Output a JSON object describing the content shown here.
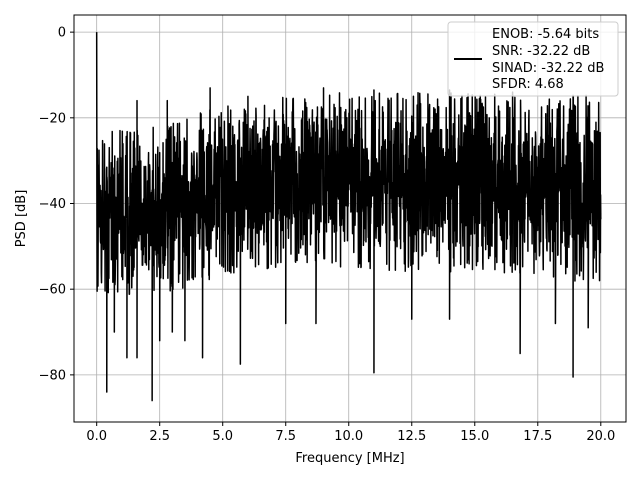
{
  "chart_data": {
    "type": "line",
    "xlabel": "Frequency [MHz]",
    "ylabel": "PSD [dB]",
    "xlim": [
      -0.9,
      21.0
    ],
    "ylim": [
      -91.0,
      4.0
    ],
    "xticks": [
      0.0,
      2.5,
      5.0,
      7.5,
      10.0,
      12.5,
      15.0,
      17.5,
      20.0
    ],
    "xtick_labels": [
      "0.0",
      "2.5",
      "5.0",
      "7.5",
      "10.0",
      "12.5",
      "15.0",
      "17.5",
      "20.0"
    ],
    "yticks": [
      0,
      -20,
      -40,
      -60,
      -80
    ],
    "ytick_labels": [
      "0",
      "−20",
      "−40",
      "−60",
      "−80"
    ],
    "grid": true,
    "legend_position": "upper right",
    "series": [
      {
        "legend_lines": [
          "ENOB: -5.64 bits",
          "SNR: -32.22 dB",
          "SINAD: -32.22 dB",
          "SFDR: 4.68"
        ],
        "color": "#000000",
        "x_range": [
          0.0,
          20.0
        ],
        "dc_peak": {
          "x": 0.0,
          "y": 0.0
        },
        "upper_envelope": [
          [
            0.1,
            -23
          ],
          [
            2.5,
            -22
          ],
          [
            5,
            -17
          ],
          [
            7.5,
            -15
          ],
          [
            10,
            -14
          ],
          [
            12.5,
            -14
          ],
          [
            15,
            -14
          ],
          [
            17.5,
            -15
          ],
          [
            20,
            -14.5
          ]
        ],
        "lower_envelope": [
          [
            0.1,
            -62
          ],
          [
            2.5,
            -62
          ],
          [
            5,
            -57
          ],
          [
            7.5,
            -55
          ],
          [
            10,
            -55
          ],
          [
            12.5,
            -56
          ],
          [
            15,
            -56
          ],
          [
            17.5,
            -57
          ],
          [
            20,
            -59
          ]
        ],
        "max_spikes": [
          [
            1.6,
            -16
          ],
          [
            2.8,
            -16
          ],
          [
            4.5,
            -13
          ],
          [
            6.0,
            -15
          ],
          [
            9.0,
            -13
          ],
          [
            11.0,
            -13.5
          ],
          [
            14.0,
            -13.5
          ],
          [
            16.5,
            -14
          ]
        ],
        "min_spikes": [
          [
            0.4,
            -84
          ],
          [
            0.7,
            -70
          ],
          [
            1.2,
            -76
          ],
          [
            1.6,
            -76
          ],
          [
            2.2,
            -86
          ],
          [
            2.5,
            -72
          ],
          [
            3.0,
            -70
          ],
          [
            3.5,
            -72
          ],
          [
            4.2,
            -76
          ],
          [
            5.7,
            -77.5
          ],
          [
            7.5,
            -68
          ],
          [
            8.7,
            -68
          ],
          [
            11.0,
            -79.5
          ],
          [
            12.5,
            -67
          ],
          [
            14.0,
            -67
          ],
          [
            16.8,
            -75
          ],
          [
            18.2,
            -68
          ],
          [
            18.9,
            -80.5
          ],
          [
            19.5,
            -69
          ]
        ]
      }
    ]
  }
}
